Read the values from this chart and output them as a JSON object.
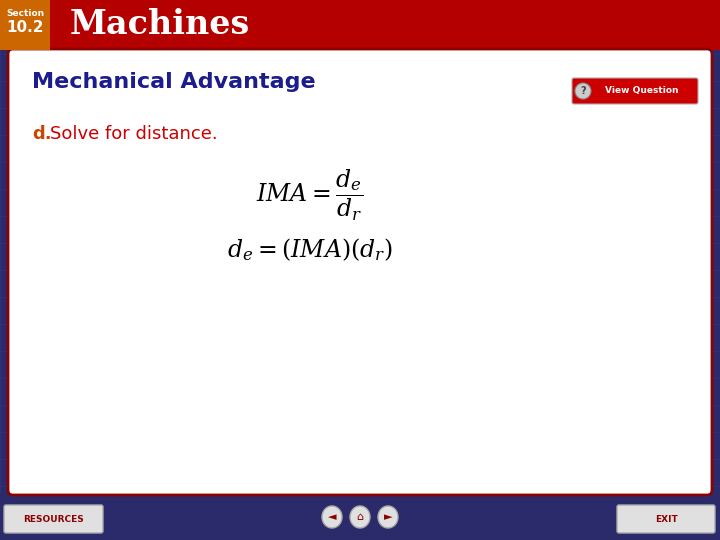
{
  "header_bg_color": "#B50000",
  "header_text": "Machines",
  "header_text_color": "#FFFFFF",
  "section_label": "Section",
  "section_number": "10.2",
  "section_box_color": "#CC6600",
  "section_text_color": "#FFFFFF",
  "main_bg_color": "#2B2B6B",
  "content_bg_color": "#FFFFFF",
  "content_border_color": "#8B0000",
  "title_text": "Mechanical Advantage",
  "title_color": "#1C1C8C",
  "label_d_color": "#CC4400",
  "solve_color": "#CC0000",
  "formula_color": "#000000",
  "footer_bg_color": "#2B2B6B",
  "resources_text": "RESOURCES",
  "exit_text": "EXIT",
  "button_text_color": "#8B0000",
  "grid_color": "#4444AA",
  "vq_btn_color": "#CC0000",
  "vq_text_color": "#FFFFFF",
  "vq_circle_color": "#CCCCCC"
}
